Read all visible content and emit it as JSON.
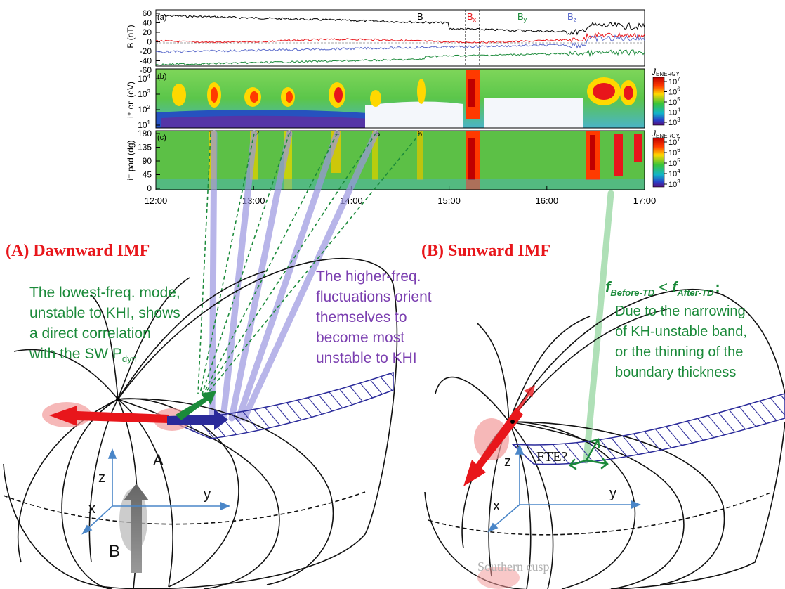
{
  "panels": {
    "a": {
      "letter": "(a)",
      "ylabel": "B (nT)",
      "yticks": [
        "60",
        "40",
        "20",
        "0",
        "-20",
        "-40",
        "-60"
      ],
      "legend": {
        "b": "B",
        "bx": "B",
        "bx_sub": "x",
        "by": "B",
        "by_sub": "y",
        "bz": "B",
        "bz_sub": "z"
      }
    },
    "b": {
      "letter": "(b)",
      "ylabel": "i⁺ en (eV)",
      "ytick_base": "10",
      "ytick_exps": [
        "4",
        "3",
        "2",
        "1"
      ],
      "colorbar": {
        "title": "J",
        "title_sub": "ENERGY",
        "base": "10",
        "exps": [
          "7",
          "6",
          "5",
          "4",
          "3"
        ]
      }
    },
    "c": {
      "letter": "(c)",
      "ylabel": "i⁺ pad (dg)",
      "yticks": [
        "180",
        "135",
        "90",
        "45",
        "0"
      ],
      "colorbar": {
        "title": "J",
        "title_sub": "ENERGY",
        "base": "10",
        "exps": [
          "7",
          "6",
          "5",
          "4",
          "3"
        ]
      }
    },
    "markers": [
      "1",
      "2",
      "3",
      "4",
      "5",
      "6"
    ],
    "xticks": [
      "12:00",
      "13:00",
      "14:00",
      "15:00",
      "16:00",
      "17:00"
    ]
  },
  "left": {
    "title": "(A) Dawnward IMF",
    "green_note": [
      "The lowest-freq. mode,",
      "unstable to KHI, shows",
      "a direct correlation",
      "with the SW P"
    ],
    "green_note_sub": "dyn",
    "purple_note": [
      "The higher-freq.",
      "fluctuations orient",
      "themselves to",
      "become most",
      "unstable to KHI"
    ],
    "label_a": "A",
    "label_b": "B",
    "axes": {
      "z": "z",
      "y": "y",
      "x": "x"
    }
  },
  "right": {
    "title": "(B) Sunward IMF",
    "formula": {
      "f1": "f",
      "s1": "Before-TD",
      "op": "<",
      "f2": "f",
      "s2": "After-TD",
      "colon": ":"
    },
    "note": [
      "Due to the narrowing",
      "of KH-unstable band,",
      "or the thinning of the",
      "boundary thickness"
    ],
    "fte": "FTE?",
    "cusp": "Southern cusp",
    "axes": {
      "z": "z",
      "y": "y",
      "x": "x"
    }
  },
  "colors": {
    "red": "#e8161b",
    "green": "#1b8a3a",
    "purple": "#7b3fb0",
    "navy": "#2a2a9a",
    "axis_blue": "#4a86c8"
  }
}
